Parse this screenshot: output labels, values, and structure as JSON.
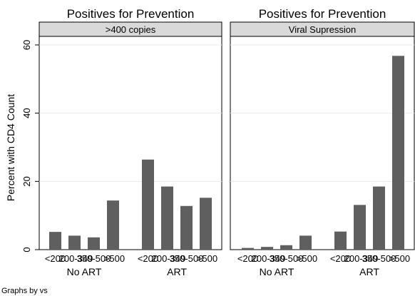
{
  "chart_data": {
    "type": "bar",
    "ylabel": "Percent with CD4 Count",
    "ylim": [
      0,
      60
    ],
    "yticks": [
      0,
      20,
      40,
      60
    ],
    "grid": true,
    "note": "Graphs by vs",
    "panels": [
      {
        "title": "Positives for Prevention",
        "strip": ">400 copies",
        "groups": [
          {
            "label": "No ART",
            "categories": [
              "<200",
              "200-349",
              "350-500",
              ">500"
            ],
            "values": [
              5.2,
              4.1,
              3.6,
              14.4
            ]
          },
          {
            "label": "ART",
            "categories": [
              "<200",
              "200-349",
              "350-500",
              ">500"
            ],
            "values": [
              26.4,
              18.5,
              12.8,
              15.2
            ]
          }
        ]
      },
      {
        "title": "Positives for Prevention",
        "strip": "Viral Supression",
        "groups": [
          {
            "label": "No ART",
            "categories": [
              "<200",
              "200-349",
              "350-500",
              ">500"
            ],
            "values": [
              0.5,
              0.8,
              1.3,
              4.1
            ]
          },
          {
            "label": "ART",
            "categories": [
              "<200",
              "200-349",
              "350-500",
              ">500"
            ],
            "values": [
              5.3,
              13.1,
              18.5,
              56.8
            ]
          }
        ]
      }
    ],
    "colors": {
      "bar": "#5f5f5f",
      "strip": "#d9d9d9",
      "grid": "#e8e8e8",
      "frame": "#000000"
    }
  }
}
